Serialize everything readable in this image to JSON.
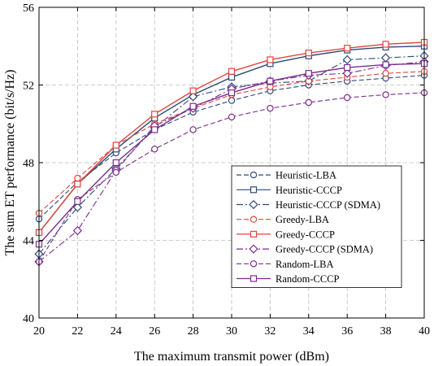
{
  "chart_data": {
    "type": "line",
    "title": "",
    "xlabel": "The maximum transmit power (dBm)",
    "ylabel": "The sum ET performance (bit/s/Hz)",
    "x": [
      20,
      22,
      24,
      26,
      28,
      30,
      32,
      34,
      36,
      38,
      40
    ],
    "xlim": [
      20,
      40
    ],
    "ylim": [
      40,
      56
    ],
    "xticks": [
      "20",
      "22",
      "24",
      "26",
      "28",
      "30",
      "32",
      "34",
      "36",
      "38",
      "40"
    ],
    "yticks": [
      "40",
      "44",
      "48",
      "52",
      "56"
    ],
    "grid": true,
    "legend_position": "bottom-right",
    "series": [
      {
        "name": "Heuristic-LBA",
        "color": "#2e4a7a",
        "dash": "dashed",
        "marker": "circle",
        "values": [
          45.1,
          47.0,
          48.5,
          49.7,
          50.6,
          51.2,
          51.7,
          52.0,
          52.2,
          52.35,
          52.5
        ]
      },
      {
        "name": "Heuristic-CCCP",
        "color": "#2e4a7a",
        "dash": "solid",
        "marker": "square",
        "values": [
          44.4,
          46.9,
          48.7,
          50.3,
          51.5,
          52.4,
          53.1,
          53.5,
          53.8,
          53.95,
          54.0
        ]
      },
      {
        "name": "Heuristic-CCCP (SDMA)",
        "color": "#2e4a7a",
        "dash": "dashdot",
        "marker": "diamond",
        "values": [
          43.3,
          45.7,
          47.7,
          49.8,
          51.4,
          51.9,
          52.1,
          52.2,
          53.3,
          53.4,
          53.5
        ]
      },
      {
        "name": "Greedy-LBA",
        "color": "#e0463c",
        "dash": "dashed",
        "marker": "circle",
        "values": [
          45.4,
          47.2,
          48.9,
          50.0,
          50.8,
          51.5,
          51.9,
          52.2,
          52.4,
          52.6,
          52.7
        ]
      },
      {
        "name": "Greedy-CCCP",
        "color": "#e0463c",
        "dash": "solid",
        "marker": "square",
        "values": [
          44.4,
          46.9,
          48.9,
          50.5,
          51.7,
          52.7,
          53.3,
          53.65,
          53.9,
          54.1,
          54.2
        ]
      },
      {
        "name": "Greedy-CCCP (SDMA)",
        "color": "#7b2d8e",
        "dash": "dashdot",
        "marker": "diamond",
        "values": [
          42.9,
          44.5,
          47.6,
          49.9,
          50.8,
          51.8,
          52.2,
          52.5,
          52.6,
          53.0,
          53.2
        ]
      },
      {
        "name": "Random-LBA",
        "color": "#7b2d8e",
        "dash": "dashed",
        "marker": "circle",
        "values": [
          42.9,
          46.1,
          47.5,
          48.7,
          49.7,
          50.35,
          50.8,
          51.1,
          51.35,
          51.5,
          51.6
        ]
      },
      {
        "name": "Random-CCCP",
        "color": "#7b2d8e",
        "dash": "solid",
        "marker": "square",
        "values": [
          43.8,
          46.0,
          48.0,
          49.7,
          50.9,
          51.6,
          52.2,
          52.6,
          52.9,
          53.05,
          53.1
        ]
      }
    ]
  }
}
